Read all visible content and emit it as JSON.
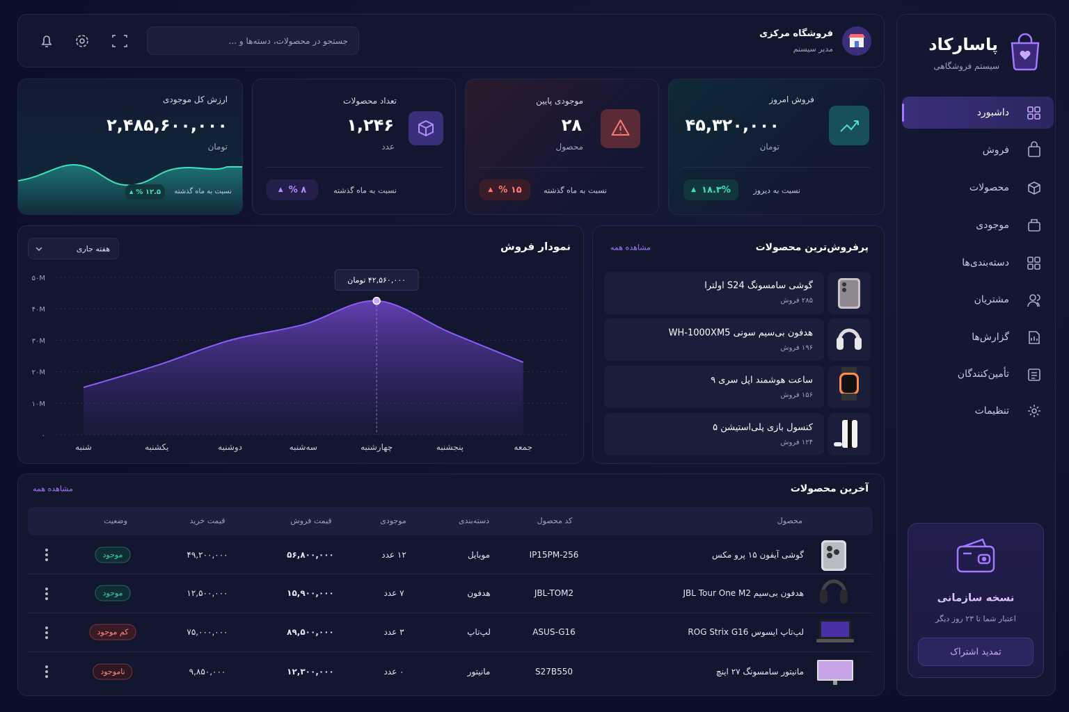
{
  "sidebar": {
    "brand": "پاسارکاد",
    "tagline": "سیستم فروشگاهی",
    "menu": [
      "داشبورد",
      "فروش",
      "محصولات",
      "موجودی",
      "دسته‌بندی‌ها",
      "مشتریان",
      "گزارش‌ها",
      "تأمین‌کنندگان",
      "تنظیمات"
    ],
    "plan": {
      "title": "نسخه سازمانی",
      "note": "اعتبار شما تا ۲۳ روز دیگر",
      "button": "تمدید اشتراک"
    }
  },
  "header": {
    "store": "فروشگاه مرکزی",
    "role": "مدیر سیستم",
    "search_placeholder": "جستجو در محصولات، دسته‌ها و ..."
  },
  "stats": [
    {
      "label": "فروش امروز",
      "value": "۴۵,۳۲۰,۰۰۰",
      "unit": "تومان",
      "change": "۱۸.۳%",
      "compare": "نسبت به دیروز"
    },
    {
      "label": "موجودی پایین",
      "value": "۲۸",
      "unit": "محصول",
      "change": "۱۵ %",
      "compare": "نسبت به ماه گذشته"
    },
    {
      "label": "تعداد محصولات",
      "value": "۱,۲۴۶",
      "unit": "عدد",
      "change": "۸ %",
      "compare": "نسبت به ماه گذشته"
    },
    {
      "label": "ارزش کل موجودی",
      "value": "۲,۴۸۵,۶۰۰,۰۰۰",
      "unit": "تومان",
      "change": "۱۲.۵ %",
      "compare": "نسبت به ماه گذشته"
    }
  ],
  "sales_chart": {
    "type": "line",
    "title": "نمودار فروش",
    "period": "هفته جاری",
    "categories": [
      "شنبه",
      "یکشنبه",
      "دوشنبه",
      "سه‌شنبه",
      "چهارشنبه",
      "پنجشنبه",
      "جمعه"
    ],
    "values": [
      15,
      22,
      30,
      35,
      42.56,
      32.5,
      23
    ],
    "tooltip": "۴۲,۵۶۰,۰۰۰ تومان",
    "color": "#8b5cf6",
    "ylim": [
      0,
      50
    ],
    "yticks": [
      {
        "value": 0,
        "label": "۰"
      },
      {
        "value": 10,
        "label": "۱۰M"
      },
      {
        "value": 20,
        "label": "۲۰M"
      },
      {
        "value": 30,
        "label": "۳۰M"
      },
      {
        "value": 40,
        "label": "۴۰M"
      },
      {
        "value": 50,
        "label": "۵۰M"
      }
    ],
    "grid": true
  },
  "top_products": {
    "title": "پرفروش‌ترین محصولات",
    "view_all": "مشاهده همه",
    "items": [
      {
        "name": "گوشی سامسونگ S24 اولترا",
        "sales": "۲۸۵ فروش"
      },
      {
        "name": "هدفون بی‌سیم سونی WH-1000XM5",
        "sales": "۱۹۶ فروش"
      },
      {
        "name": "ساعت هوشمند اپل سری ۹",
        "sales": "۱۵۶ فروش"
      },
      {
        "name": "کنسول بازی پلی‌استیشن ۵",
        "sales": "۱۲۴ فروش"
      }
    ]
  },
  "latest_products": {
    "title": "آخرین محصولات",
    "view_all": "مشاهده همه",
    "columns": [
      "محصول",
      "کد محصول",
      "دسته‌بندی",
      "موجودی",
      "قیمت فروش",
      "قیمت خرید",
      "وضعیت"
    ],
    "rows": [
      [
        "گوشی آیفون ۱۵ پرو مکس",
        "IP15PM-256",
        "موبایل",
        "۱۲ عدد",
        "۵۶,۸۰۰,۰۰۰",
        "۴۹,۲۰۰,۰۰۰",
        "موجود"
      ],
      [
        "هدفون بی‌سیم JBL Tour One M2",
        "JBL-TOM2",
        "هدفون",
        "۷ عدد",
        "۱۵,۹۰۰,۰۰۰",
        "۱۲,۵۰۰,۰۰۰",
        "موجود"
      ],
      [
        "لپ‌تاپ ایسوس ROG Strix G16",
        "ASUS-G16",
        "لپ‌تاپ",
        "۳ عدد",
        "۸۹,۵۰۰,۰۰۰",
        "۷۵,۰۰۰,۰۰۰",
        "کم موجود"
      ],
      [
        "مانیتور سامسونگ ۲۷ اینچ",
        "S27B550",
        "مانیتور",
        "۰ عدد",
        "۱۲,۳۰۰,۰۰۰",
        "۹,۸۵۰,۰۰۰",
        "ناموجود"
      ]
    ]
  }
}
